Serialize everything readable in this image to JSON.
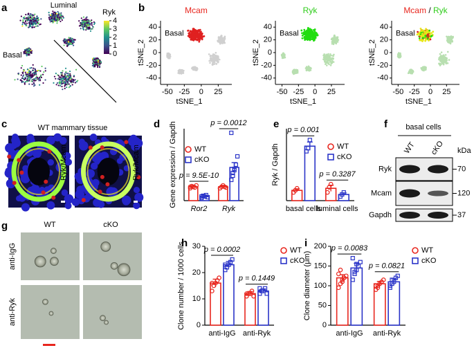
{
  "panel_labels": [
    "a",
    "b",
    "c",
    "d",
    "e",
    "f",
    "g",
    "h",
    "i"
  ],
  "tsne_a": {
    "labels": [
      "Luminal",
      "Basal"
    ],
    "colorbar": {
      "title": "Ryk",
      "ticks": [
        0,
        1,
        2,
        3,
        4
      ]
    }
  },
  "tsne_b": {
    "titles": [
      [
        "Mcam"
      ],
      [
        "Ryk"
      ],
      [
        "Mcam",
        " / ",
        "Ryk"
      ]
    ],
    "title_colors": [
      "#e8261e",
      "#2ecc1a"
    ],
    "region_label": "Basal",
    "xlabel": "tSNE_1",
    "ylabel": "tSNE_2",
    "xlim": [
      -60,
      45
    ],
    "ylim": [
      -50,
      50
    ],
    "xticks": [
      -50,
      -25,
      0,
      25
    ],
    "yticks": [
      40,
      20,
      0,
      -20,
      -40
    ]
  },
  "tissue_c": {
    "title": "WT mammary tissue",
    "image_labels": [
      "Ryk/Mcam",
      "Ryk/Mcam"
    ]
  },
  "blot_f": {
    "title": "basal cells",
    "lanes": [
      "WT",
      "cKO"
    ],
    "unit": "kDa",
    "bands": [
      {
        "name": "Ryk",
        "kda": 70
      },
      {
        "name": "Mcam",
        "kda": 120
      },
      {
        "name": "Gapdh",
        "kda": 37
      }
    ]
  },
  "images_g": {
    "columns": [
      "WT",
      "cKO"
    ],
    "rows": [
      "anti-IgG",
      "anti-Ryk"
    ]
  },
  "chart_data": [
    {
      "type": "bar",
      "ylabel": "Gene expression / Gapdh",
      "categories": [
        "Ror2",
        "Ryk"
      ],
      "ylim": [
        0,
        5.2
      ],
      "legend": "upper left",
      "series": [
        {
          "name": "WT",
          "color": "#e8261e",
          "marker": "circle",
          "values": [
            1.0,
            1.0
          ],
          "errors": [
            0.08,
            0.07
          ],
          "points": [
            [
              0.9,
              1.05,
              1.0,
              0.95,
              1.1,
              1.0
            ],
            [
              0.9,
              1.0,
              1.1,
              1.0,
              0.95
            ]
          ]
        },
        {
          "name": "cKO",
          "color": "#2a34c8",
          "marker": "square",
          "values": [
            0.3,
            2.4
          ],
          "errors": [
            0.05,
            0.35
          ],
          "points": [
            [
              0.2,
              0.35,
              0.3,
              0.4,
              0.25,
              0.3
            ],
            [
              1.5,
              2.0,
              2.3,
              2.6,
              3.2,
              4.9,
              1.8,
              2.2
            ]
          ]
        }
      ],
      "annotations": [
        "p = 9.5E-10",
        "p = 0.0012"
      ]
    },
    {
      "type": "bar",
      "ylabel": "Ryk / Gapdh",
      "categories": [
        "basal cells",
        "luminal cells"
      ],
      "ylim": [
        0,
        7
      ],
      "legend": "upper right",
      "series": [
        {
          "name": "WT",
          "color": "#e8261e",
          "marker": "circle",
          "values": [
            1.0,
            1.2
          ],
          "errors": [
            0.15,
            0.3
          ],
          "points": [
            [
              0.8,
              1.0,
              1.2
            ],
            [
              0.8,
              1.3,
              1.6
            ]
          ]
        },
        {
          "name": "cKO",
          "color": "#2a34c8",
          "marker": "square",
          "values": [
            5.3,
            0.6
          ],
          "errors": [
            0.4,
            0.15
          ],
          "points": [
            [
              4.8,
              5.1,
              5.9
            ],
            [
              0.4,
              0.6,
              0.8
            ]
          ]
        }
      ],
      "annotations": [
        "p = 0.001",
        "p = 0.3287"
      ]
    },
    {
      "type": "bar",
      "ylabel": "Clone number / 1000 cells",
      "categories": [
        "anti-IgG",
        "anti-Ryk"
      ],
      "ylim": [
        0,
        30
      ],
      "yticks": [
        0,
        10,
        20,
        30
      ],
      "legend": "outside right",
      "series": [
        {
          "name": "WT",
          "color": "#e8261e",
          "marker": "circle",
          "values": [
            16,
            12
          ],
          "errors": [
            1.5,
            0.8
          ],
          "points": [
            [
              13,
              15,
              16,
              17,
              18,
              16
            ],
            [
              11,
              12,
              12,
              13,
              11,
              12
            ]
          ]
        },
        {
          "name": "cKO",
          "color": "#2a34c8",
          "marker": "square",
          "values": [
            23,
            13
          ],
          "errors": [
            1.2,
            0.8
          ],
          "points": [
            [
              21,
              22,
              23,
              24,
              25,
              23
            ],
            [
              12,
              13,
              13,
              14,
              12,
              14
            ]
          ]
        }
      ],
      "annotations": [
        "p = 0.0002",
        "p = 0.1449"
      ]
    },
    {
      "type": "bar",
      "ylabel": "Clone diameter (μm)",
      "categories": [
        "anti-IgG",
        "anti-Ryk"
      ],
      "ylim": [
        0,
        200
      ],
      "yticks": [
        0,
        50,
        100,
        150,
        200
      ],
      "legend": "outside right",
      "series": [
        {
          "name": "WT",
          "color": "#e8261e",
          "marker": "circle",
          "values": [
            120,
            105
          ],
          "errors": [
            8,
            6
          ],
          "points": [
            [
              95,
              105,
              115,
              120,
              125,
              130,
              140,
              110
            ],
            [
              90,
              100,
              105,
              110,
              115,
              100,
              95
            ]
          ]
        },
        {
          "name": "cKO",
          "color": "#2a34c8",
          "marker": "square",
          "values": [
            145,
            110
          ],
          "errors": [
            12,
            8
          ],
          "points": [
            [
              115,
              130,
              140,
              150,
              160,
              170,
              135,
              155
            ],
            [
              95,
              105,
              110,
              120,
              125,
              100,
              115
            ]
          ]
        }
      ],
      "annotations": [
        "p = 0.0083",
        "p = 0.0821"
      ]
    }
  ]
}
